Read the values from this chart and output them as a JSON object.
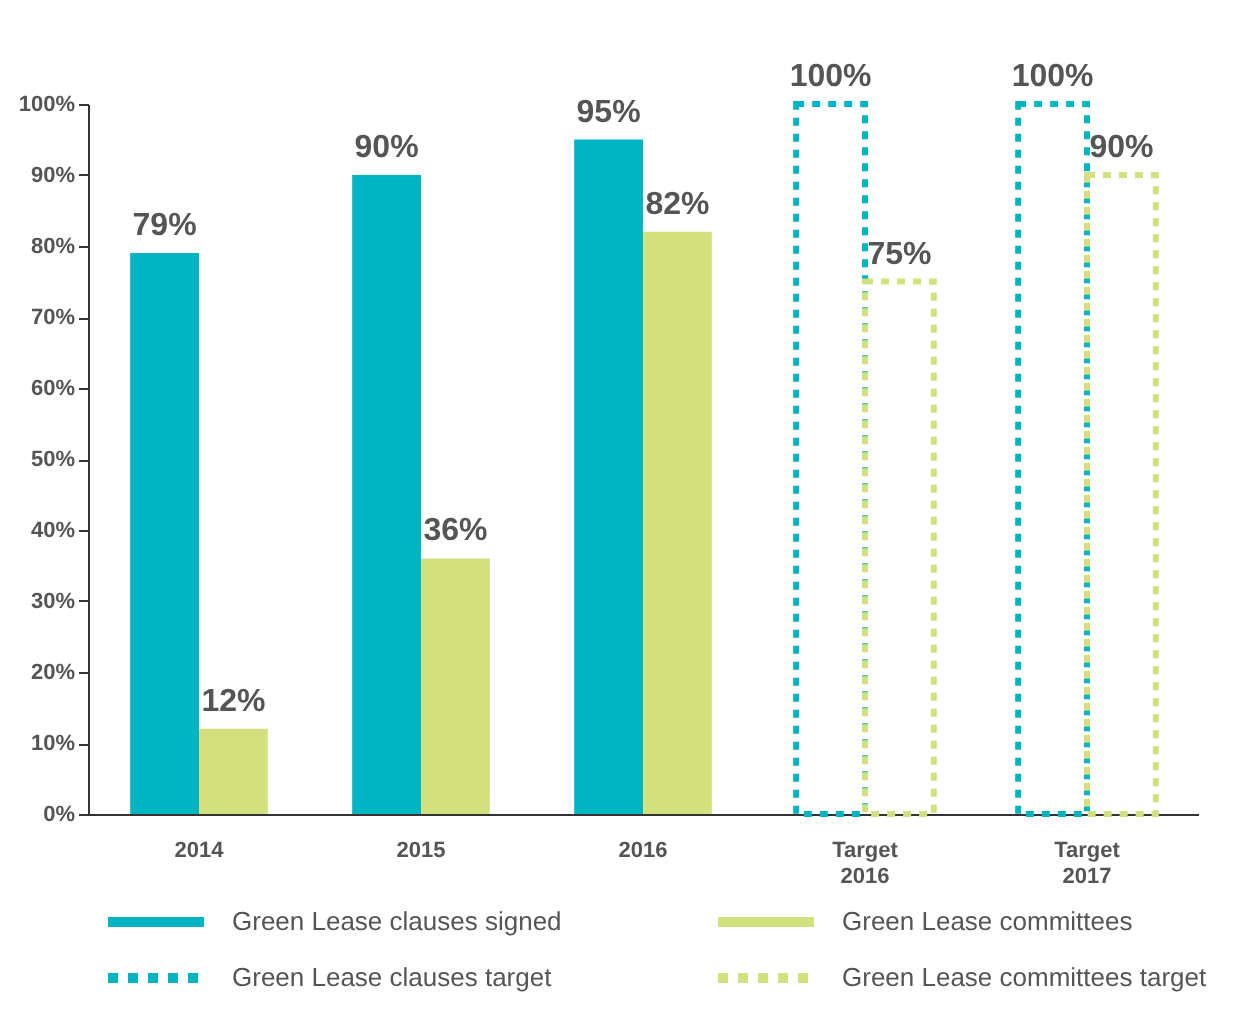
{
  "chart_data": {
    "type": "bar",
    "categories": [
      "2014",
      "2015",
      "2016",
      "Target\n2016",
      "Target\n2017"
    ],
    "ylim": [
      0,
      100
    ],
    "yticks": [
      {
        "value": 0,
        "label": "0%"
      },
      {
        "value": 10,
        "label": "10%"
      },
      {
        "value": 20,
        "label": "20%"
      },
      {
        "value": 30,
        "label": "30%"
      },
      {
        "value": 40,
        "label": "40%"
      },
      {
        "value": 50,
        "label": "50%"
      },
      {
        "value": 60,
        "label": "60%"
      },
      {
        "value": 70,
        "label": "70%"
      },
      {
        "value": 80,
        "label": "80%"
      },
      {
        "value": 90,
        "label": "90%"
      },
      {
        "value": 100,
        "label": "100%"
      }
    ],
    "grid": false,
    "legend": "bottom",
    "series": [
      {
        "name": "Green Lease clauses signed",
        "color": "#00b5c3",
        "line_style": "solid",
        "values": [
          79,
          90,
          95,
          null,
          null
        ],
        "value_labels": [
          "79%",
          "90%",
          "95%",
          null,
          null
        ]
      },
      {
        "name": "Green Lease committees",
        "color": "#d2e07e",
        "line_style": "solid",
        "values": [
          12,
          36,
          82,
          null,
          null
        ],
        "value_labels": [
          "12%",
          "36%",
          "82%",
          null,
          null
        ]
      },
      {
        "name": "Green Lease clauses target",
        "color": "#00b5c3",
        "line_style": "dotted",
        "values": [
          null,
          null,
          null,
          100,
          100
        ],
        "value_labels": [
          null,
          null,
          null,
          "100%",
          "100%"
        ]
      },
      {
        "name": "Green Lease committees target",
        "color": "#d2e07e",
        "line_style": "dotted",
        "values": [
          null,
          null,
          null,
          75,
          90
        ],
        "value_labels": [
          null,
          null,
          null,
          "75%",
          "90%"
        ]
      }
    ]
  }
}
